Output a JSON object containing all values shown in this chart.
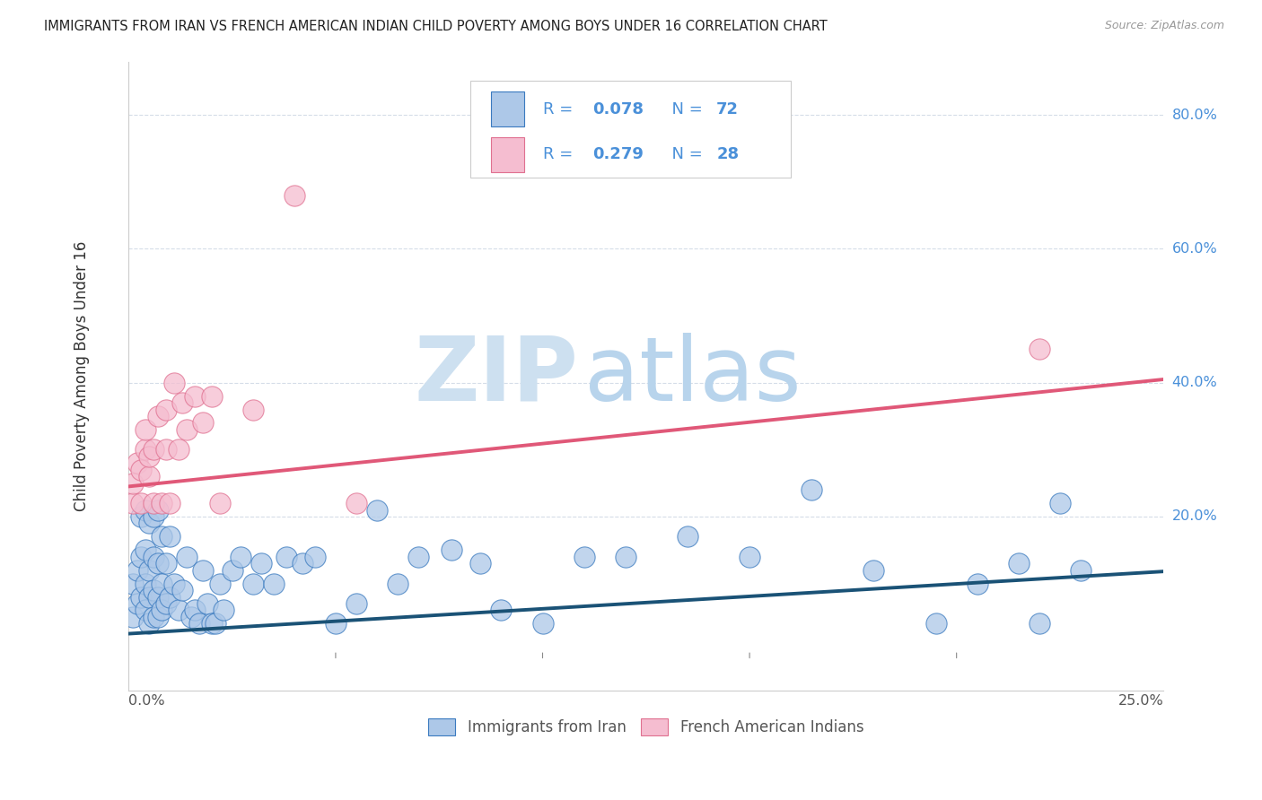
{
  "title": "IMMIGRANTS FROM IRAN VS FRENCH AMERICAN INDIAN CHILD POVERTY AMONG BOYS UNDER 16 CORRELATION CHART",
  "source": "Source: ZipAtlas.com",
  "ylabel": "Child Poverty Among Boys Under 16",
  "blue_R": 0.078,
  "blue_N": 72,
  "pink_R": 0.279,
  "pink_N": 28,
  "blue_color": "#adc8e8",
  "blue_edge_color": "#3a7abf",
  "blue_line_color": "#1a5276",
  "pink_color": "#f5bdd0",
  "pink_edge_color": "#e07090",
  "pink_line_color": "#e05878",
  "legend_label_blue": "Immigrants from Iran",
  "legend_label_pink": "French American Indians",
  "legend_text_color": "#4a90d9",
  "watermark_zip": "ZIP",
  "watermark_atlas": "atlas",
  "watermark_zip_color": "#cde0f0",
  "watermark_atlas_color": "#b8d4ec",
  "blue_scatter_x": [
    0.001,
    0.001,
    0.002,
    0.002,
    0.003,
    0.003,
    0.003,
    0.004,
    0.004,
    0.004,
    0.004,
    0.005,
    0.005,
    0.005,
    0.005,
    0.006,
    0.006,
    0.006,
    0.006,
    0.007,
    0.007,
    0.007,
    0.007,
    0.008,
    0.008,
    0.008,
    0.009,
    0.009,
    0.01,
    0.01,
    0.011,
    0.012,
    0.013,
    0.014,
    0.015,
    0.016,
    0.017,
    0.018,
    0.019,
    0.02,
    0.021,
    0.022,
    0.023,
    0.025,
    0.027,
    0.03,
    0.032,
    0.035,
    0.038,
    0.042,
    0.045,
    0.05,
    0.055,
    0.06,
    0.065,
    0.07,
    0.078,
    0.085,
    0.09,
    0.1,
    0.11,
    0.12,
    0.135,
    0.15,
    0.165,
    0.18,
    0.195,
    0.205,
    0.215,
    0.22,
    0.225,
    0.23
  ],
  "blue_scatter_y": [
    0.05,
    0.1,
    0.07,
    0.12,
    0.08,
    0.14,
    0.2,
    0.06,
    0.1,
    0.15,
    0.21,
    0.04,
    0.08,
    0.12,
    0.19,
    0.05,
    0.09,
    0.14,
    0.2,
    0.05,
    0.08,
    0.13,
    0.21,
    0.06,
    0.1,
    0.17,
    0.07,
    0.13,
    0.08,
    0.17,
    0.1,
    0.06,
    0.09,
    0.14,
    0.05,
    0.06,
    0.04,
    0.12,
    0.07,
    0.04,
    0.04,
    0.1,
    0.06,
    0.12,
    0.14,
    0.1,
    0.13,
    0.1,
    0.14,
    0.13,
    0.14,
    0.04,
    0.07,
    0.21,
    0.1,
    0.14,
    0.15,
    0.13,
    0.06,
    0.04,
    0.14,
    0.14,
    0.17,
    0.14,
    0.24,
    0.12,
    0.04,
    0.1,
    0.13,
    0.04,
    0.22,
    0.12
  ],
  "pink_scatter_x": [
    0.001,
    0.001,
    0.002,
    0.003,
    0.003,
    0.004,
    0.004,
    0.005,
    0.005,
    0.006,
    0.006,
    0.007,
    0.008,
    0.009,
    0.009,
    0.01,
    0.011,
    0.012,
    0.013,
    0.014,
    0.016,
    0.018,
    0.02,
    0.022,
    0.03,
    0.04,
    0.055,
    0.22
  ],
  "pink_scatter_y": [
    0.22,
    0.25,
    0.28,
    0.22,
    0.27,
    0.3,
    0.33,
    0.26,
    0.29,
    0.22,
    0.3,
    0.35,
    0.22,
    0.3,
    0.36,
    0.22,
    0.4,
    0.3,
    0.37,
    0.33,
    0.38,
    0.34,
    0.38,
    0.22,
    0.36,
    0.68,
    0.22,
    0.45
  ],
  "background_color": "#ffffff",
  "grid_color": "#d5dde8",
  "xlim": [
    0,
    0.25
  ],
  "ylim": [
    -0.06,
    0.88
  ],
  "blue_line_x0": 0.0,
  "blue_line_x1": 0.25,
  "blue_line_y0": 0.025,
  "blue_line_y1": 0.118,
  "pink_line_x0": 0.0,
  "pink_line_x1": 0.25,
  "pink_line_y0": 0.245,
  "pink_line_y1": 0.405
}
